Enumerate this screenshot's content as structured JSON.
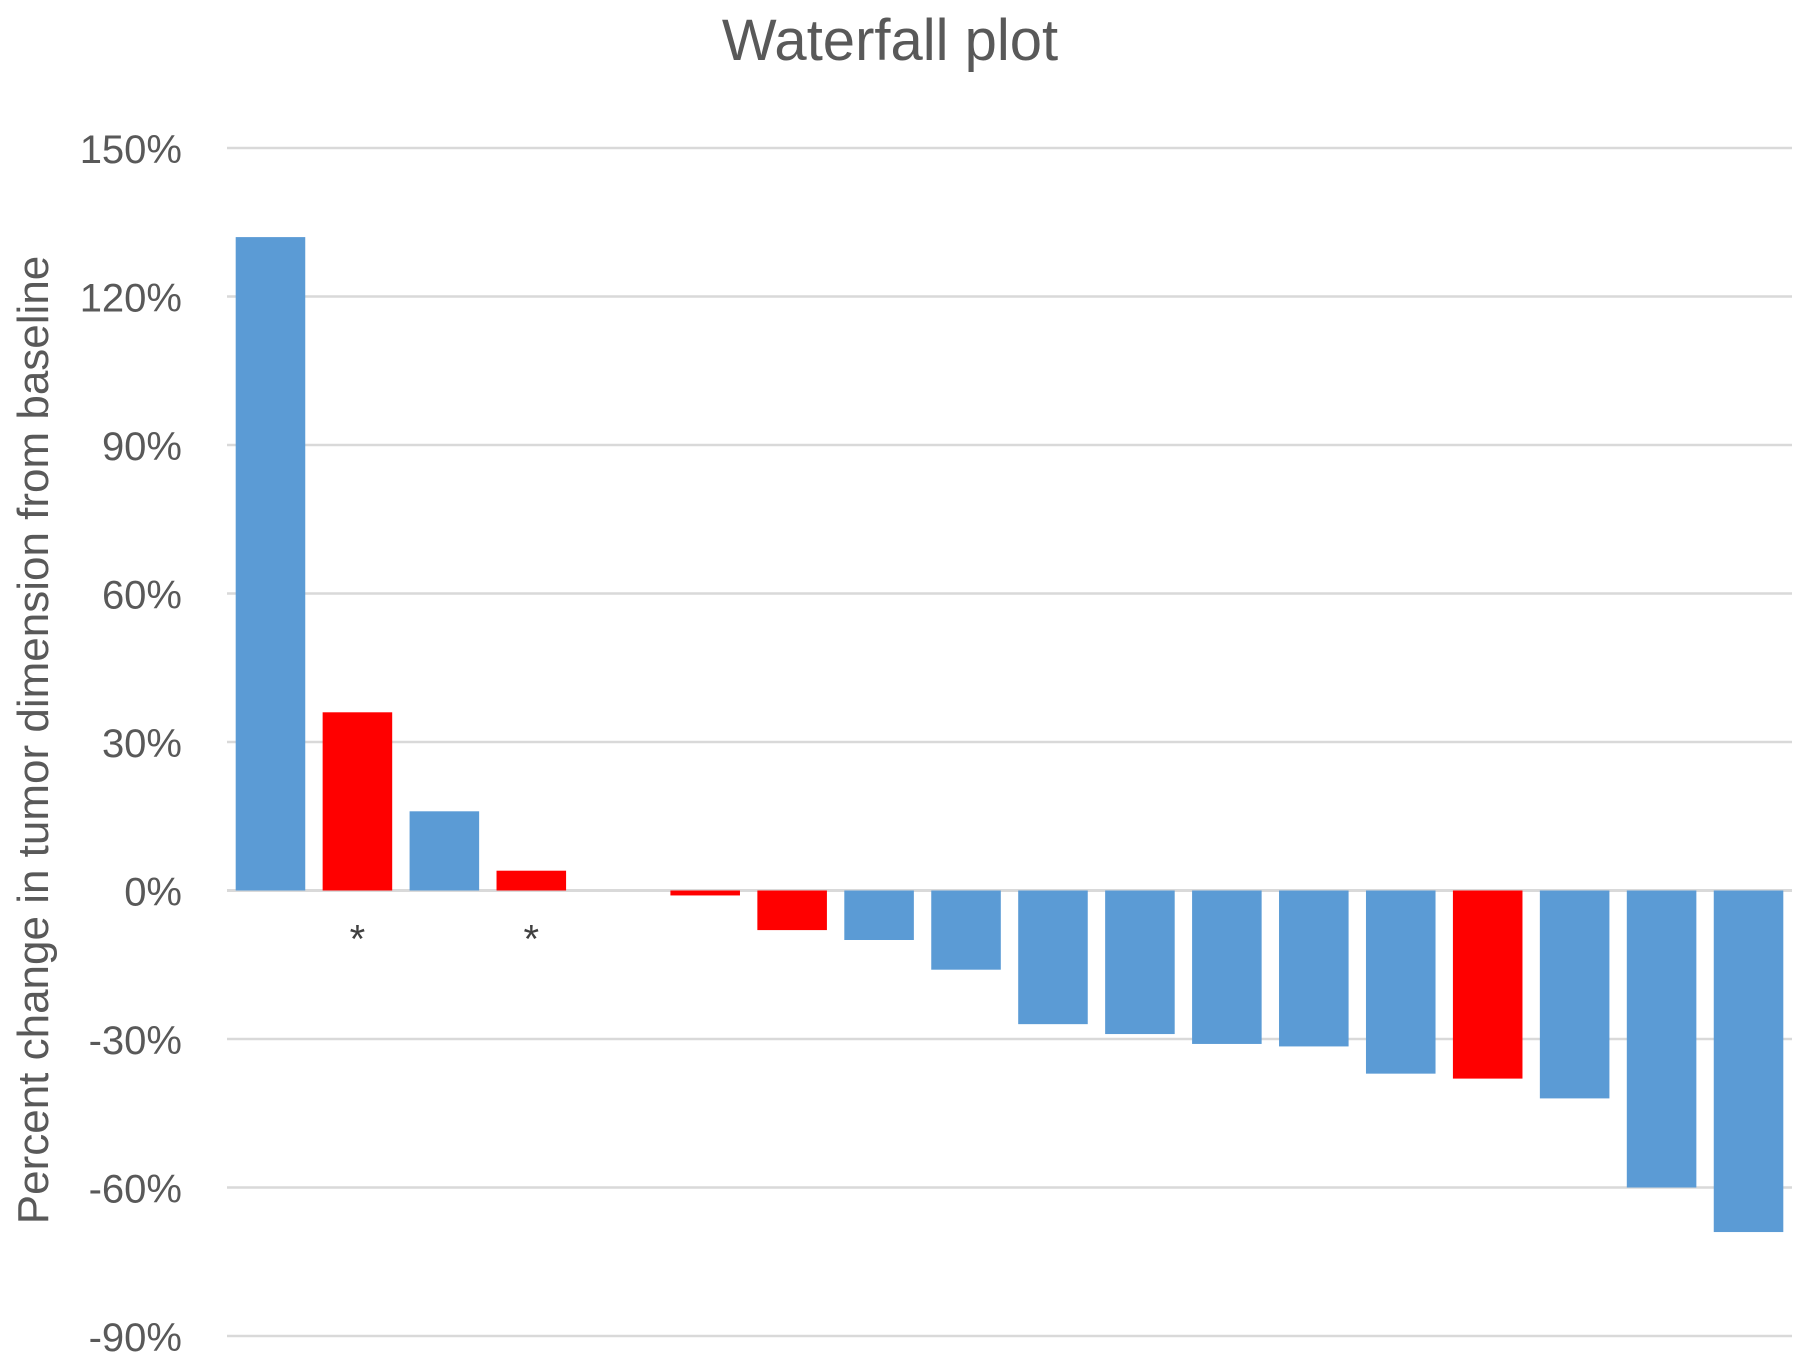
{
  "chart_data": {
    "type": "bar",
    "title": "Waterfall plot",
    "xlabel": "",
    "ylabel": "Percent change in tumor dimension from baseline",
    "ylim": [
      -90,
      150
    ],
    "yticks": [
      150,
      120,
      90,
      60,
      30,
      0,
      -30,
      -60,
      -90
    ],
    "ytick_labels": [
      "150%",
      "120%",
      "90%",
      "60%",
      "30%",
      "0%",
      "-30%",
      "-60%",
      "-90%"
    ],
    "grid": true,
    "legend": "none",
    "categories": [
      "",
      "",
      "",
      "",
      "",
      "",
      "",
      "",
      "",
      "",
      "",
      "",
      "",
      "",
      "",
      "",
      "",
      ""
    ],
    "values": [
      132,
      36,
      16,
      4,
      0,
      -1,
      -8,
      -10,
      -16,
      -27,
      -29,
      -31,
      -31.5,
      -37,
      -38,
      -42,
      -60,
      -69
    ],
    "bar_colors": [
      "#5B9BD5",
      "#FF0000",
      "#5B9BD5",
      "#FF0000",
      "#5B9BD5",
      "#FF0000",
      "#FF0000",
      "#5B9BD5",
      "#5B9BD5",
      "#5B9BD5",
      "#5B9BD5",
      "#5B9BD5",
      "#5B9BD5",
      "#5B9BD5",
      "#FF0000",
      "#5B9BD5",
      "#5B9BD5",
      "#5B9BD5"
    ],
    "annotations": [
      {
        "bar_index": 1,
        "text": "*"
      },
      {
        "bar_index": 3,
        "text": "*"
      }
    ],
    "colors": {
      "blue": "#5B9BD5",
      "red": "#FF0000",
      "grid": "#D9D9D9",
      "text": "#595959"
    }
  }
}
